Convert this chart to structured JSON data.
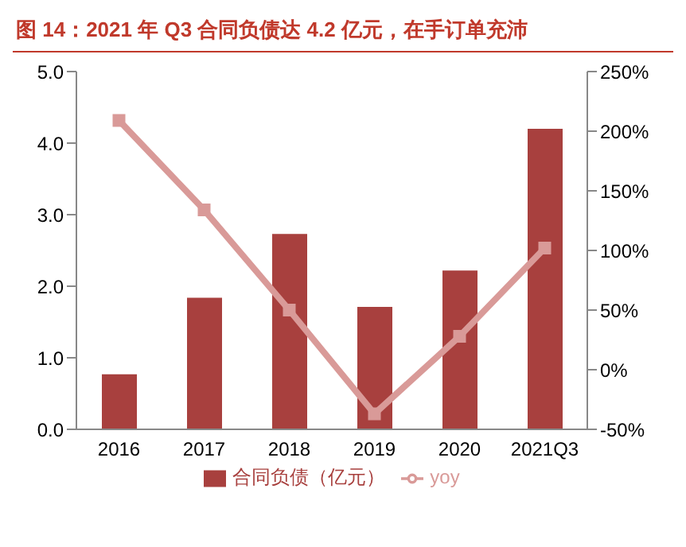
{
  "chart_data": {
    "type": "bar",
    "title": "图 14：2021 年 Q3 合同负债达 4.2 亿元，在手订单充沛",
    "categories": [
      "2016",
      "2017",
      "2018",
      "2019",
      "2020",
      "2021Q3"
    ],
    "series": [
      {
        "name": "合同负债（亿元）",
        "color": "#a8403e",
        "values": [
          0.77,
          1.84,
          2.73,
          1.71,
          2.22,
          4.2
        ]
      },
      {
        "name": "yoy",
        "type": "line",
        "axis": "y2",
        "color": "#d99a98",
        "marker": "square",
        "values": [
          209,
          134,
          50,
          -37,
          28,
          102
        ]
      }
    ],
    "ylim": [
      0,
      5
    ],
    "yticks": [
      {
        "value": 0,
        "label": "0.0"
      },
      {
        "value": 1,
        "label": "1.0"
      },
      {
        "value": 2,
        "label": "2.0"
      },
      {
        "value": 3,
        "label": "3.0"
      },
      {
        "value": 4,
        "label": "4.0"
      },
      {
        "value": 5,
        "label": "5.0"
      }
    ],
    "y2lim": [
      -50,
      250
    ],
    "y2ticks": [
      {
        "value": -50,
        "label": "-50%"
      },
      {
        "value": 0,
        "label": "0%"
      },
      {
        "value": 50,
        "label": "50%"
      },
      {
        "value": 100,
        "label": "100%"
      },
      {
        "value": 150,
        "label": "150%"
      },
      {
        "value": 200,
        "label": "200%"
      },
      {
        "value": 250,
        "label": "250%"
      }
    ],
    "grid": false,
    "legend": "bottom"
  }
}
